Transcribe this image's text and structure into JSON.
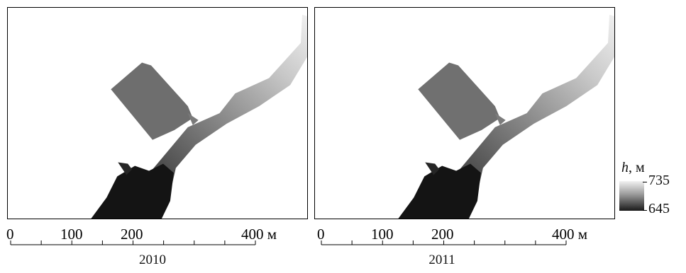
{
  "panels": [
    {
      "id": "2010",
      "year_label": "2010"
    },
    {
      "id": "2011",
      "year_label": "2011"
    }
  ],
  "scale": {
    "ticks": [
      "0",
      "100",
      "200",
      "400"
    ],
    "unit": "м",
    "minor_divisions": 8
  },
  "legend": {
    "symbol": "h",
    "unit_suffix": ", м",
    "max_label": "735",
    "min_label": "645",
    "max_color": "#f2f2f2",
    "min_color": "#1a1a1a"
  }
}
